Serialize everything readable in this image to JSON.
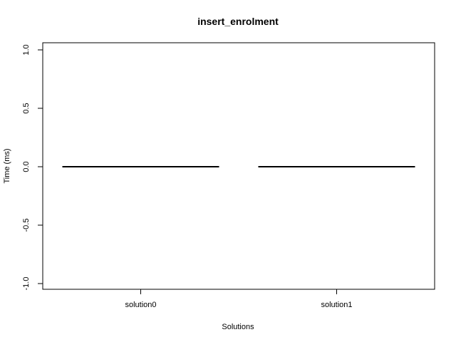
{
  "chart_data": {
    "type": "box",
    "title": "insert_enrolment",
    "xlabel": "Solutions",
    "ylabel": "Time (ms)",
    "categories": [
      "solution0",
      "solution1"
    ],
    "values": [
      0.0,
      0.0
    ],
    "ylim": [
      -1.0,
      1.0
    ],
    "yticks": [
      -1.0,
      -0.5,
      0.0,
      0.5,
      1.0
    ],
    "ytick_labels": [
      "-1.0",
      "-0.5",
      "0.0",
      "0.5",
      "1.0"
    ],
    "grid": false,
    "legend": "none"
  }
}
